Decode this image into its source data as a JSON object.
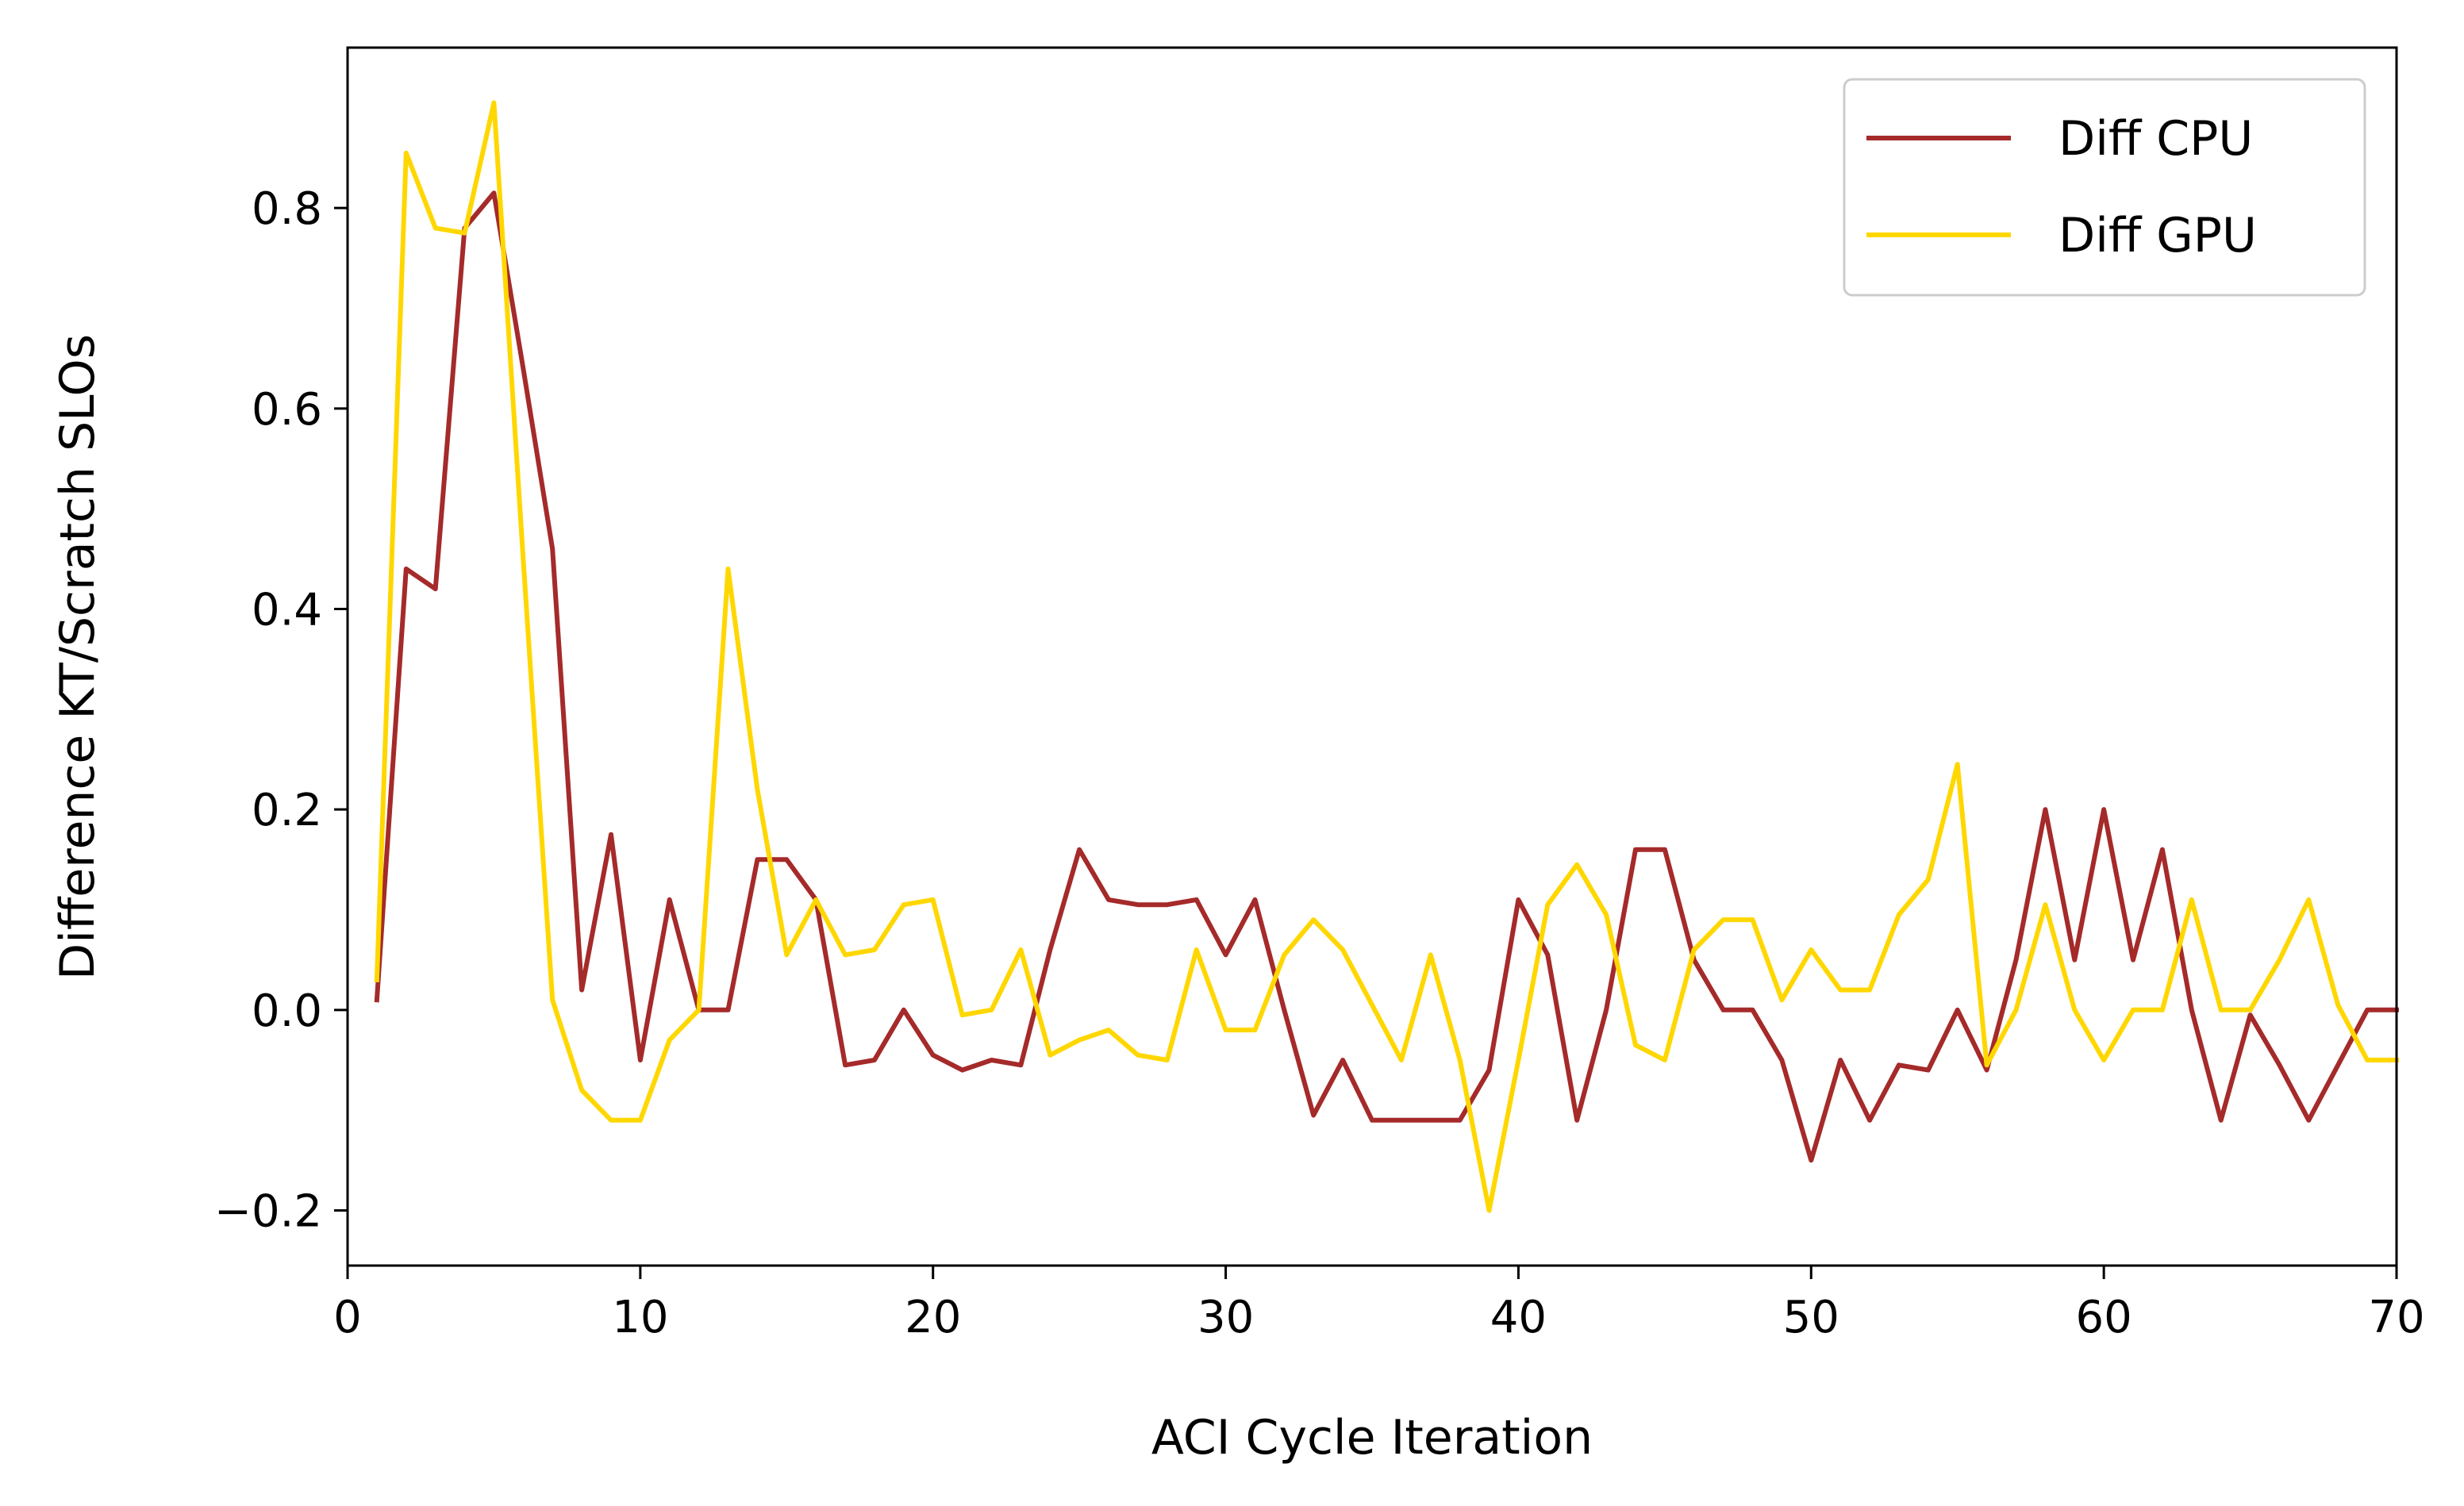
{
  "chart_data": {
    "type": "line",
    "title": "",
    "xlabel": "ACI Cycle Iteration",
    "ylabel": "Difference KT/Scratch SLOs",
    "xlim": [
      0,
      70
    ],
    "ylim": [
      -0.255,
      0.96
    ],
    "xticks": [
      0,
      10,
      20,
      30,
      40,
      50,
      60,
      70
    ],
    "yticks": [
      -0.2,
      0.0,
      0.2,
      0.4,
      0.6,
      0.8
    ],
    "ytick_labels": [
      "−0.2",
      "0.0",
      "0.2",
      "0.4",
      "0.6",
      "0.8"
    ],
    "grid": false,
    "legend_position": "top-right",
    "x": [
      1,
      2,
      3,
      4,
      5,
      6,
      7,
      8,
      9,
      10,
      11,
      12,
      13,
      14,
      15,
      16,
      17,
      18,
      19,
      20,
      21,
      22,
      23,
      24,
      25,
      26,
      27,
      28,
      29,
      30,
      31,
      32,
      33,
      34,
      35,
      36,
      37,
      38,
      39,
      40,
      41,
      42,
      43,
      44,
      45,
      46,
      47,
      48,
      49,
      50,
      51,
      52,
      53,
      54,
      55,
      56,
      57,
      58,
      59,
      60,
      61,
      62,
      63,
      64,
      65,
      66,
      67,
      68,
      69,
      70
    ],
    "series": [
      {
        "name": "Diff CPU",
        "color": "#A52A2A",
        "values": [
          0.01,
          0.44,
          0.42,
          0.78,
          0.815,
          0.64,
          0.46,
          0.02,
          0.175,
          -0.05,
          0.11,
          0.0,
          0.0,
          0.15,
          0.15,
          0.11,
          -0.055,
          -0.05,
          0.0,
          -0.045,
          -0.06,
          -0.05,
          -0.055,
          0.06,
          0.16,
          0.11,
          0.105,
          0.105,
          0.11,
          0.055,
          0.11,
          0.0,
          -0.105,
          -0.05,
          -0.11,
          -0.11,
          -0.11,
          -0.11,
          -0.06,
          0.11,
          0.055,
          -0.11,
          0.0,
          0.16,
          0.16,
          0.05,
          0.0,
          0.0,
          -0.05,
          -0.15,
          -0.05,
          -0.11,
          -0.055,
          -0.06,
          0.0,
          -0.06,
          0.05,
          0.2,
          0.05,
          0.2,
          0.05,
          0.16,
          0.0,
          -0.11,
          -0.005,
          -0.055,
          -0.11,
          -0.055,
          0.0,
          0.0
        ]
      },
      {
        "name": "Diff GPU",
        "color": "#FFD700",
        "values": [
          0.03,
          0.855,
          0.78,
          0.775,
          0.905,
          0.45,
          0.01,
          -0.08,
          -0.11,
          -0.11,
          -0.03,
          0.0,
          0.44,
          0.22,
          0.055,
          0.11,
          0.055,
          0.06,
          0.105,
          0.11,
          -0.005,
          0.0,
          0.06,
          -0.045,
          -0.03,
          -0.02,
          -0.045,
          -0.05,
          0.06,
          -0.02,
          -0.02,
          0.055,
          0.09,
          0.06,
          0.005,
          -0.05,
          0.055,
          -0.05,
          -0.2,
          -0.05,
          0.105,
          0.145,
          0.095,
          -0.035,
          -0.05,
          0.06,
          0.09,
          0.09,
          0.01,
          0.06,
          0.02,
          0.02,
          0.095,
          0.13,
          0.245,
          -0.055,
          0.0,
          0.105,
          0.0,
          -0.05,
          0.0,
          0.0,
          0.11,
          0.0,
          0.0,
          0.05,
          0.11,
          0.005,
          -0.05,
          -0.05
        ]
      }
    ]
  }
}
